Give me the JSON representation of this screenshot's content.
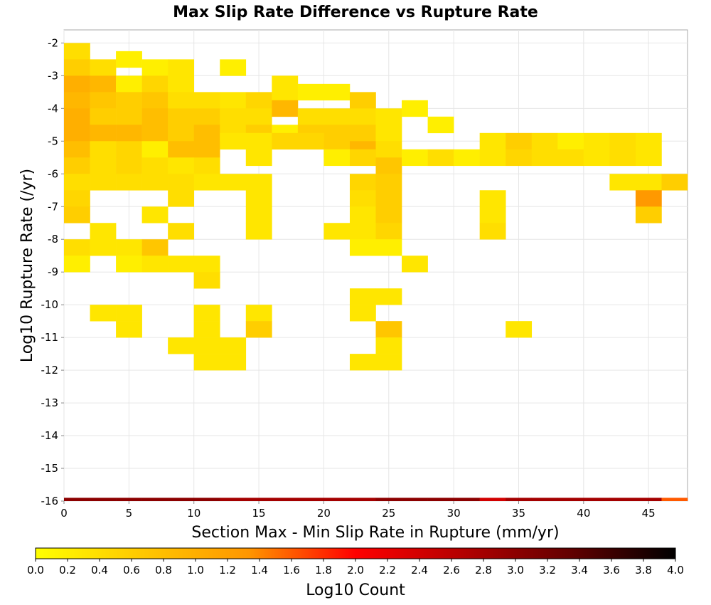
{
  "chart_data": {
    "type": "heatmap",
    "title": "Max Slip Rate Difference vs Rupture Rate",
    "xlabel": "Section Max - Min Slip Rate in Rupture (mm/yr)",
    "ylabel": "Log10 Rupture Rate (/yr)",
    "xlim": [
      0,
      48
    ],
    "ylim": [
      -16,
      -1.6
    ],
    "x_bin_width": 2,
    "y_bin_width": 0.5,
    "x_ticks": [
      "0",
      "5",
      "10",
      "15",
      "20",
      "25",
      "30",
      "35",
      "40",
      "45"
    ],
    "y_ticks": [
      "-2",
      "-3",
      "-4",
      "-5",
      "-6",
      "-7",
      "-8",
      "-9",
      "-10",
      "-11",
      "-12",
      "-13",
      "-14",
      "-15",
      "-16"
    ],
    "grid": true,
    "colorbar": {
      "label": "Log10 Count",
      "range": [
        0,
        4
      ],
      "ticks": [
        "0.0",
        "0.2",
        "0.4",
        "0.6",
        "0.8",
        "1.0",
        "1.2",
        "1.4",
        "1.6",
        "1.8",
        "2.0",
        "2.2",
        "2.4",
        "2.6",
        "2.8",
        "3.0",
        "3.2",
        "3.4",
        "3.6",
        "3.8",
        "4.0"
      ],
      "colors": [
        "#ffff00",
        "#ffc800",
        "#ff9600",
        "#ff0000",
        "#b40000",
        "#640000",
        "#000000"
      ],
      "placement": "bottom"
    },
    "cells": [
      [
        0,
        -2.25,
        0.4
      ],
      [
        0,
        -2.75,
        0.6
      ],
      [
        2,
        -2.75,
        0.4
      ],
      [
        4,
        -2.5,
        0.2
      ],
      [
        6,
        -2.75,
        0.2
      ],
      [
        8,
        -2.75,
        0.3
      ],
      [
        12,
        -2.75,
        0.2
      ],
      [
        0,
        -3.25,
        1.0
      ],
      [
        2,
        -3.25,
        0.9
      ],
      [
        4,
        -3.25,
        0.2
      ],
      [
        6,
        -3.25,
        0.5
      ],
      [
        8,
        -3.25,
        0.3
      ],
      [
        16,
        -3.25,
        0.3
      ],
      [
        0,
        -3.75,
        0.9
      ],
      [
        2,
        -3.75,
        0.7
      ],
      [
        4,
        -3.75,
        0.6
      ],
      [
        6,
        -3.75,
        0.7
      ],
      [
        8,
        -3.75,
        0.4
      ],
      [
        10,
        -3.75,
        0.4
      ],
      [
        12,
        -3.75,
        0.3
      ],
      [
        14,
        -3.75,
        0.5
      ],
      [
        16,
        -3.75,
        0.3
      ],
      [
        18,
        -3.5,
        0.2
      ],
      [
        20,
        -3.5,
        0.2
      ],
      [
        22,
        -3.75,
        0.6
      ],
      [
        0,
        -4.25,
        1.0
      ],
      [
        2,
        -4.25,
        0.6
      ],
      [
        4,
        -4.25,
        0.6
      ],
      [
        6,
        -4.25,
        0.8
      ],
      [
        8,
        -4.25,
        0.6
      ],
      [
        10,
        -4.25,
        0.6
      ],
      [
        12,
        -4.25,
        0.4
      ],
      [
        14,
        -4.25,
        0.4
      ],
      [
        16,
        -4.0,
        0.9
      ],
      [
        18,
        -4.25,
        0.4
      ],
      [
        20,
        -4.25,
        0.4
      ],
      [
        22,
        -4.25,
        0.4
      ],
      [
        24,
        -4.25,
        0.3
      ],
      [
        26,
        -4.0,
        0.2
      ],
      [
        0,
        -4.75,
        1.0
      ],
      [
        2,
        -4.75,
        0.9
      ],
      [
        4,
        -4.75,
        0.9
      ],
      [
        6,
        -4.75,
        0.8
      ],
      [
        8,
        -4.75,
        0.6
      ],
      [
        10,
        -4.75,
        0.8
      ],
      [
        12,
        -4.75,
        0.4
      ],
      [
        14,
        -4.75,
        0.6
      ],
      [
        16,
        -4.75,
        0.2
      ],
      [
        18,
        -4.75,
        0.6
      ],
      [
        20,
        -4.75,
        0.6
      ],
      [
        22,
        -4.75,
        0.6
      ],
      [
        24,
        -4.75,
        0.3
      ],
      [
        28,
        -4.5,
        0.2
      ],
      [
        0,
        -5.25,
        0.8
      ],
      [
        2,
        -5.25,
        0.4
      ],
      [
        4,
        -5.25,
        0.5
      ],
      [
        6,
        -5.25,
        0.2
      ],
      [
        8,
        -5.25,
        0.8
      ],
      [
        10,
        -5.25,
        0.8
      ],
      [
        12,
        -5.0,
        0.3
      ],
      [
        14,
        -5.0,
        0.3
      ],
      [
        16,
        -5.0,
        0.5
      ],
      [
        18,
        -5.0,
        0.5
      ],
      [
        20,
        -5.25,
        0.6
      ],
      [
        22,
        -5.25,
        0.9
      ],
      [
        24,
        -5.25,
        0.4
      ],
      [
        32,
        -5.0,
        0.3
      ],
      [
        34,
        -5.0,
        0.6
      ],
      [
        36,
        -5.0,
        0.4
      ],
      [
        38,
        -5.0,
        0.2
      ],
      [
        40,
        -5.0,
        0.3
      ],
      [
        42,
        -5.0,
        0.4
      ],
      [
        44,
        -5.0,
        0.3
      ],
      [
        0,
        -5.75,
        0.6
      ],
      [
        2,
        -5.75,
        0.4
      ],
      [
        4,
        -5.75,
        0.5
      ],
      [
        6,
        -5.75,
        0.4
      ],
      [
        8,
        -5.75,
        0.3
      ],
      [
        10,
        -5.75,
        0.4
      ],
      [
        14,
        -5.5,
        0.3
      ],
      [
        20,
        -5.5,
        0.2
      ],
      [
        22,
        -5.5,
        0.5
      ],
      [
        24,
        -5.75,
        0.7
      ],
      [
        26,
        -5.5,
        0.2
      ],
      [
        28,
        -5.5,
        0.4
      ],
      [
        30,
        -5.5,
        0.2
      ],
      [
        32,
        -5.5,
        0.3
      ],
      [
        34,
        -5.5,
        0.5
      ],
      [
        36,
        -5.5,
        0.4
      ],
      [
        38,
        -5.5,
        0.4
      ],
      [
        40,
        -5.5,
        0.3
      ],
      [
        42,
        -5.5,
        0.4
      ],
      [
        44,
        -5.5,
        0.3
      ],
      [
        0,
        -6.25,
        0.4
      ],
      [
        2,
        -6.25,
        0.4
      ],
      [
        4,
        -6.25,
        0.4
      ],
      [
        6,
        -6.25,
        0.4
      ],
      [
        8,
        -6.25,
        0.4
      ],
      [
        10,
        -6.25,
        0.3
      ],
      [
        12,
        -6.25,
        0.3
      ],
      [
        14,
        -6.25,
        0.3
      ],
      [
        22,
        -6.25,
        0.5
      ],
      [
        24,
        -6.25,
        0.6
      ],
      [
        42,
        -6.25,
        0.3
      ],
      [
        44,
        -6.25,
        0.3
      ],
      [
        46,
        -6.25,
        0.6
      ],
      [
        0,
        -6.75,
        0.5
      ],
      [
        8,
        -6.75,
        0.4
      ],
      [
        14,
        -6.75,
        0.3
      ],
      [
        22,
        -6.75,
        0.4
      ],
      [
        24,
        -6.75,
        0.6
      ],
      [
        32,
        -6.75,
        0.3
      ],
      [
        44,
        -6.75,
        1.3
      ],
      [
        0,
        -7.25,
        0.6
      ],
      [
        6,
        -7.25,
        0.3
      ],
      [
        14,
        -7.25,
        0.3
      ],
      [
        22,
        -7.25,
        0.3
      ],
      [
        24,
        -7.25,
        0.6
      ],
      [
        32,
        -7.25,
        0.3
      ],
      [
        44,
        -7.25,
        0.6
      ],
      [
        2,
        -7.75,
        0.3
      ],
      [
        8,
        -7.75,
        0.4
      ],
      [
        14,
        -7.75,
        0.3
      ],
      [
        20,
        -7.75,
        0.3
      ],
      [
        22,
        -7.75,
        0.3
      ],
      [
        24,
        -7.75,
        0.5
      ],
      [
        32,
        -7.75,
        0.4
      ],
      [
        0,
        -8.25,
        0.4
      ],
      [
        2,
        -8.25,
        0.3
      ],
      [
        4,
        -8.25,
        0.3
      ],
      [
        6,
        -8.25,
        0.7
      ],
      [
        22,
        -8.25,
        0.2
      ],
      [
        24,
        -8.25,
        0.2
      ],
      [
        0,
        -8.75,
        0.2
      ],
      [
        4,
        -8.75,
        0.2
      ],
      [
        6,
        -8.75,
        0.3
      ],
      [
        8,
        -8.75,
        0.3
      ],
      [
        10,
        -8.75,
        0.3
      ],
      [
        26,
        -8.75,
        0.3
      ],
      [
        10,
        -9.25,
        0.4
      ],
      [
        22,
        -9.75,
        0.3
      ],
      [
        24,
        -9.75,
        0.3
      ],
      [
        2,
        -10.25,
        0.3
      ],
      [
        4,
        -10.25,
        0.3
      ],
      [
        10,
        -10.25,
        0.3
      ],
      [
        14,
        -10.25,
        0.3
      ],
      [
        22,
        -10.25,
        0.3
      ],
      [
        4,
        -10.75,
        0.3
      ],
      [
        10,
        -10.75,
        0.3
      ],
      [
        14,
        -10.75,
        0.6
      ],
      [
        24,
        -10.75,
        0.7
      ],
      [
        34,
        -10.75,
        0.3
      ],
      [
        8,
        -11.25,
        0.3
      ],
      [
        10,
        -11.25,
        0.3
      ],
      [
        12,
        -11.25,
        0.3
      ],
      [
        24,
        -11.25,
        0.3
      ],
      [
        10,
        -11.75,
        0.3
      ],
      [
        12,
        -11.75,
        0.3
      ],
      [
        22,
        -11.75,
        0.3
      ],
      [
        24,
        -11.75,
        0.3
      ]
    ],
    "bottom_row": {
      "y": -16,
      "values": [
        3.0,
        3.0,
        3.0,
        3.0,
        3.0,
        3.0,
        2.8,
        2.8,
        2.8,
        2.8,
        2.8,
        2.8,
        3.0,
        3.0,
        3.0,
        3.0,
        2.4,
        2.8,
        2.8,
        2.8,
        2.8,
        2.8,
        2.8,
        1.6
      ]
    }
  }
}
